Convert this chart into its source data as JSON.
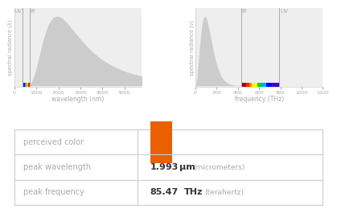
{
  "perceived_color": "#e86000",
  "peak_wavelength_val": "1.993",
  "peak_wavelength_unit": "μm",
  "peak_wavelength_sub": "(micrometers)",
  "peak_frequency_val": "85.47",
  "peak_frequency_unit": "THz",
  "peak_frequency_sub": "(terahertz)",
  "row_labels": [
    "perceived color",
    "peak wavelength",
    "peak frequency"
  ],
  "label_color": "#aaaaaa",
  "text_color": "#aaaaaa",
  "dark_text": "#555555",
  "value_text": "#333333",
  "bg_color": "#ffffff",
  "plot_bg": "#eeeeee",
  "spectrum_fill": "#cccccc",
  "border_color": "#cccccc",
  "uv_ir_color": "#aaaaaa",
  "peak_nm": 1993,
  "peak_thz": 85.47,
  "nm_xlim": [
    0,
    5800
  ],
  "thz_xlim": [
    0,
    1200
  ],
  "ir_nm": 700,
  "uv_nm": 380,
  "ir_thz": 428,
  "uv_thz": 789,
  "nm_xticks": [
    0,
    1000,
    2000,
    3000,
    4000,
    5000
  ],
  "thz_xticks": [
    0,
    200,
    400,
    600,
    800,
    1000,
    1200
  ],
  "visible_colors_nm": [
    [
      380,
      "#8B00FF"
    ],
    [
      420,
      "#4400CC"
    ],
    [
      450,
      "#0000FF"
    ],
    [
      490,
      "#00AAFF"
    ],
    [
      520,
      "#00DD00"
    ],
    [
      565,
      "#FFFF00"
    ],
    [
      590,
      "#FF8800"
    ],
    [
      625,
      "#FF2200"
    ],
    [
      700,
      "#AA0000"
    ]
  ],
  "visible_colors_thz": [
    [
      428,
      "#AA0000"
    ],
    [
      480,
      "#FF2200"
    ],
    [
      510,
      "#FF8800"
    ],
    [
      530,
      "#FFFF00"
    ],
    [
      580,
      "#00DD00"
    ],
    [
      620,
      "#00AAFF"
    ],
    [
      670,
      "#0000FF"
    ],
    [
      720,
      "#4400CC"
    ],
    [
      789,
      "#8B00FF"
    ]
  ]
}
